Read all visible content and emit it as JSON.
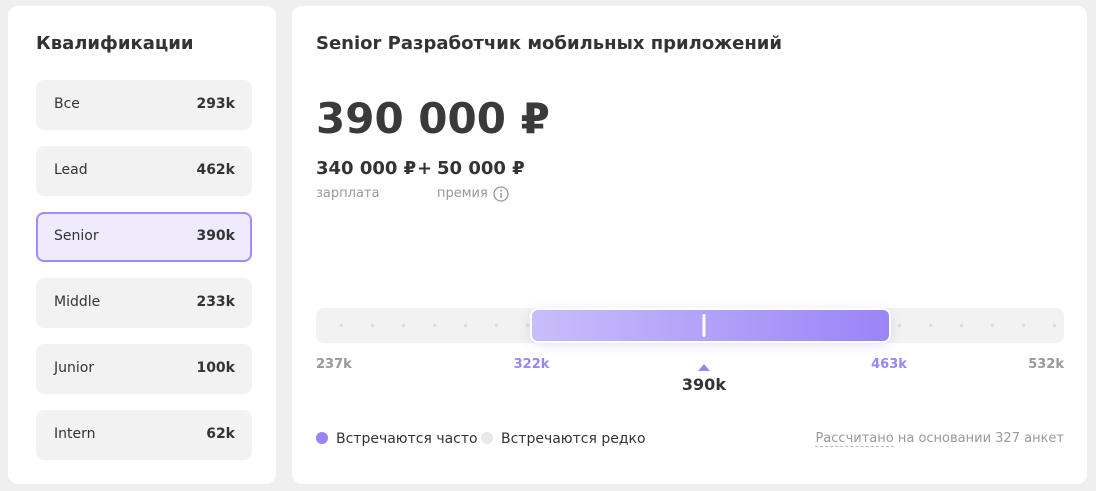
{
  "sidebar": {
    "title": "Квалификации",
    "selected": 2,
    "items": [
      {
        "label": "Все",
        "value": "293k"
      },
      {
        "label": "Lead",
        "value": "462k"
      },
      {
        "label": "Senior",
        "value": "390k"
      },
      {
        "label": "Middle",
        "value": "233k"
      },
      {
        "label": "Junior",
        "value": "100k"
      },
      {
        "label": "Intern",
        "value": "62k"
      }
    ]
  },
  "main": {
    "title": "Senior Разработчик мобильных приложений",
    "total": "390 000 ₽",
    "salary": {
      "value": "340 000 ₽",
      "label": "зарплата"
    },
    "plus": "+",
    "bonus": {
      "value": "50 000 ₽",
      "label": "премия"
    },
    "range": {
      "min": {
        "value": 237,
        "label": "237k"
      },
      "low": {
        "value": 322,
        "label": "322k"
      },
      "high": {
        "value": 463,
        "label": "463k"
      },
      "max": {
        "value": 532,
        "label": "532k"
      },
      "median": {
        "value": 390,
        "label": "390k"
      }
    },
    "legend": [
      "Встречаются часто",
      "Встречаются редко"
    ],
    "note": {
      "link": "Рассчитано",
      "text": "на основании 327 анкет"
    }
  }
}
